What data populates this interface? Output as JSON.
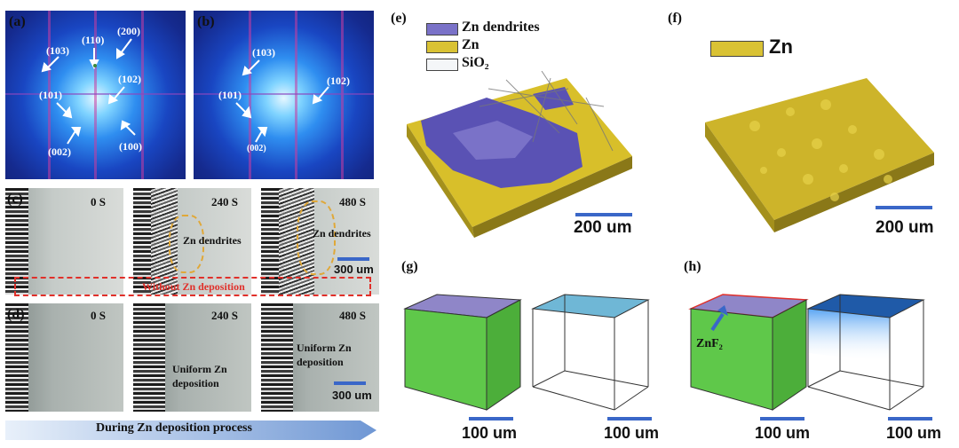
{
  "panels": {
    "a": {
      "label": "(a)",
      "indices": [
        "(110)",
        "(200)",
        "(103)",
        "(102)",
        "(101)",
        "(002)",
        "(100)"
      ]
    },
    "b": {
      "label": "(b)",
      "indices": [
        "(103)",
        "(102)",
        "(101)",
        "(002)"
      ]
    },
    "c": {
      "label": "(c)",
      "times": [
        "0 S",
        "240 S",
        "480 S"
      ],
      "annotations": [
        "Zn dendrites",
        "Zn dendrites"
      ],
      "scale": "300 um",
      "box_text": "Without Zn deposition"
    },
    "d": {
      "label": "(d)",
      "times": [
        "0 S",
        "240 S",
        "480 S"
      ],
      "annotations": [
        "Uniform Zn deposition",
        "Uniform Zn deposition"
      ],
      "scale": "300 um"
    },
    "arrow_text": "During Zn deposition process",
    "e": {
      "label": "(e)",
      "legend": [
        "Zn dendrites",
        "Zn",
        "SiO₂"
      ],
      "scale": "200 um"
    },
    "f": {
      "label": "(f)",
      "legend": [
        "Zn"
      ],
      "scale": "200 um"
    },
    "g": {
      "label": "(g)",
      "scales": [
        "100 um",
        "100 um"
      ]
    },
    "h": {
      "label": "(h)",
      "annotation": "ZnF₂",
      "scales": [
        "100 um",
        "100 um"
      ]
    }
  },
  "colors": {
    "dendrite": "#7a72c8",
    "zn": "#d9c234",
    "scale_bar": "#3a67c8",
    "red_box": "#e0302a",
    "cube_green": "#5fc84a"
  }
}
